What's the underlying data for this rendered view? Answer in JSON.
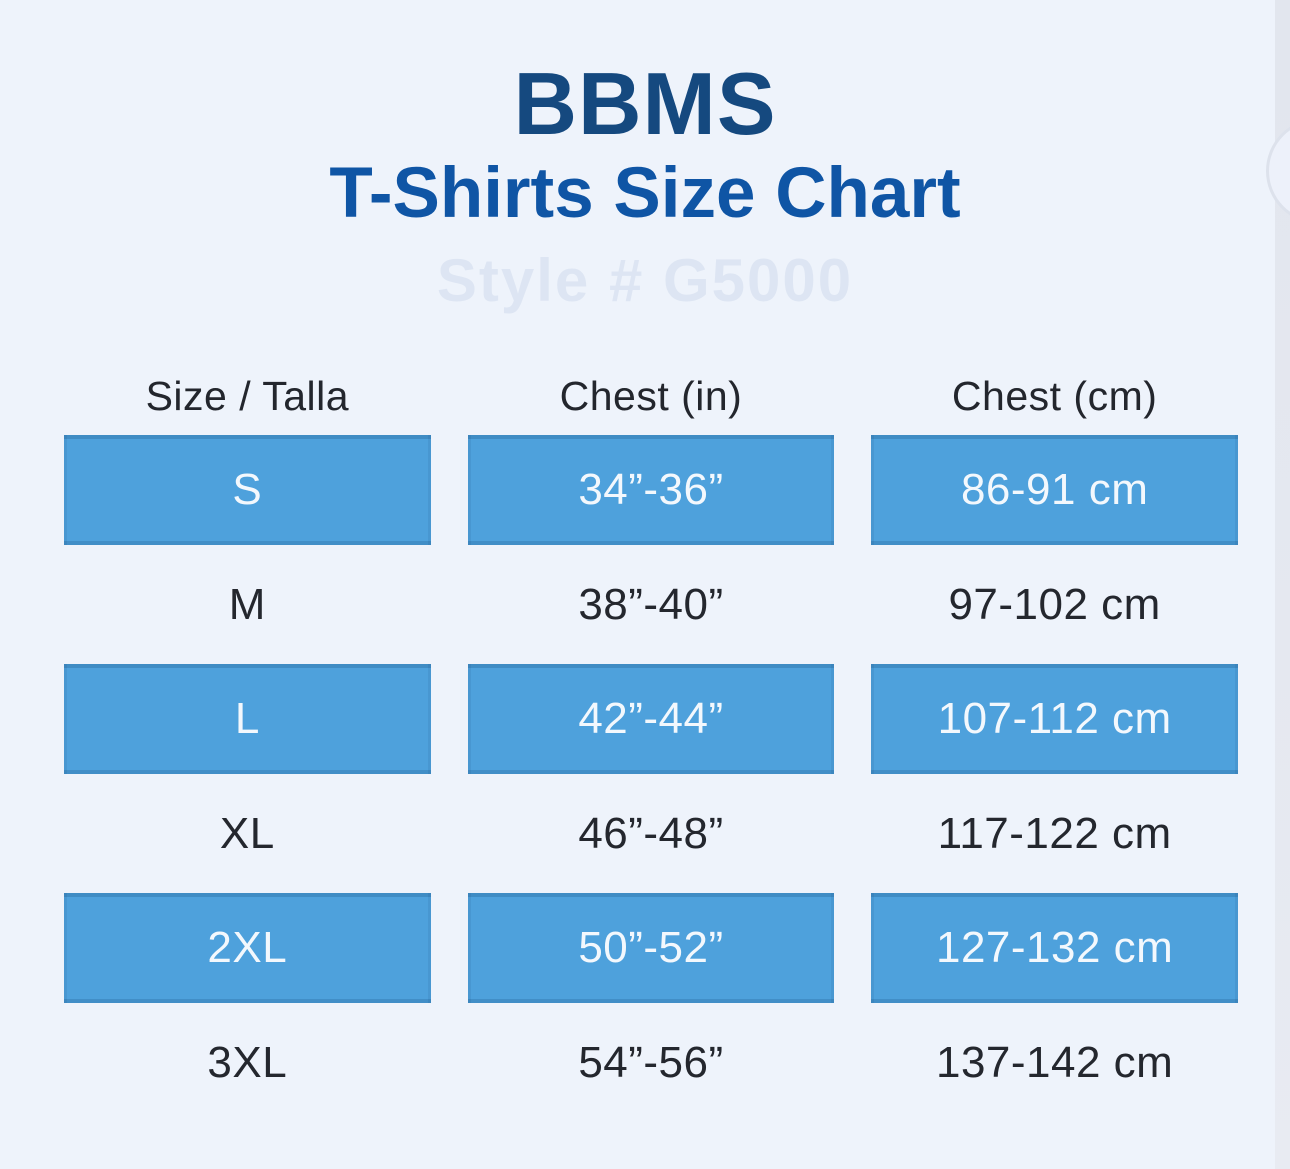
{
  "page": {
    "background": "#eef3fb",
    "right_edge_color": "#e3e7ef"
  },
  "header": {
    "brand": "BBMS",
    "title": "T-Shirts Size Chart",
    "watermark": "Style # G5000",
    "brand_color": "#15497f",
    "title_color": "#0f55a5"
  },
  "size_table": {
    "columns": [
      "Size / Talla",
      "Chest (in)",
      "Chest (cm)"
    ],
    "highlight_color": "#4ea1dc",
    "highlight_text_color": "#f3f8fd",
    "text_color": "#24272e",
    "rows": [
      {
        "size": "S",
        "chest_in": "34”-36”",
        "chest_cm": "86-91 cm",
        "highlighted": true
      },
      {
        "size": "M",
        "chest_in": "38”-40”",
        "chest_cm": "97-102 cm",
        "highlighted": false
      },
      {
        "size": "L",
        "chest_in": "42”-44”",
        "chest_cm": "107-112 cm",
        "highlighted": true
      },
      {
        "size": "XL",
        "chest_in": "46”-48”",
        "chest_cm": "117-122 cm",
        "highlighted": false
      },
      {
        "size": "2XL",
        "chest_in": "50”-52”",
        "chest_cm": "127-132 cm",
        "highlighted": true
      },
      {
        "size": "3XL",
        "chest_in": "54”-56”",
        "chest_cm": "137-142 cm",
        "highlighted": false
      }
    ]
  },
  "chart_data": {
    "type": "table",
    "title": "BBMS T-Shirts Size Chart",
    "columns": [
      "Size / Talla",
      "Chest (in)",
      "Chest (cm)"
    ],
    "rows": [
      [
        "S",
        "34\"-36\"",
        "86-91 cm"
      ],
      [
        "M",
        "38\"-40\"",
        "97-102 cm"
      ],
      [
        "L",
        "42\"-44\"",
        "107-112 cm"
      ],
      [
        "XL",
        "46\"-48\"",
        "117-122 cm"
      ],
      [
        "2XL",
        "50\"-52\"",
        "127-132 cm"
      ],
      [
        "3XL",
        "54\"-56\"",
        "137-142 cm"
      ]
    ],
    "highlighted_rows": [
      "S",
      "L",
      "2XL"
    ],
    "layout_hints": {
      "row_stripe_style": "every other row filled with brand blue",
      "grid": "off"
    }
  }
}
